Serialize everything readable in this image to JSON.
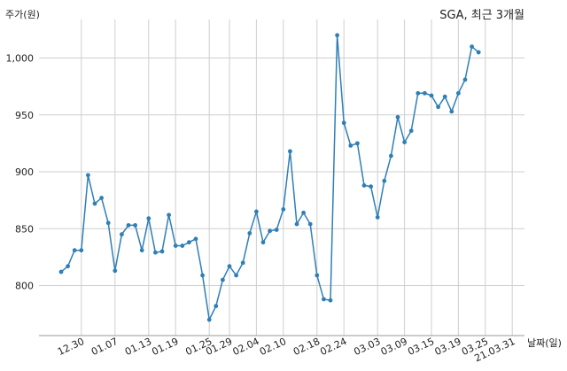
{
  "chart_data": {
    "type": "line",
    "title": "SGA, 최근 3개월",
    "xlabel": "날짜(일)",
    "ylabel": "주가(원)",
    "ylim": [
      750,
      1040
    ],
    "yticks": [
      800,
      850,
      900,
      950,
      1000
    ],
    "ytick_labels": [
      "800",
      "850",
      "900",
      "950",
      "1,000"
    ],
    "grid": true,
    "line_color": "#2f7fb7",
    "grid_color": "#cfcfcf",
    "xtick_labels": [
      "12.30",
      "01.07",
      "01.13",
      "01.19",
      "01.25",
      "01.29",
      "02.04",
      "02.10",
      "02.18",
      "02.24",
      "03.03",
      "03.09",
      "03.15",
      "03.19",
      "03.25",
      "21.03.31"
    ],
    "xtick_index": [
      3,
      8,
      13,
      17,
      22,
      25,
      29,
      33,
      38,
      42,
      47,
      51,
      55,
      59,
      63,
      67
    ],
    "series": [
      {
        "values": [
          812,
          817,
          831,
          831,
          897,
          872,
          877,
          855,
          813,
          845,
          853,
          853,
          831,
          859,
          829,
          830,
          862,
          835,
          835,
          838,
          841,
          809,
          770,
          782,
          805,
          817,
          809,
          820,
          846,
          865,
          838,
          848,
          849,
          867,
          918,
          854,
          864,
          854,
          809,
          788,
          787,
          1020,
          943,
          923,
          925,
          888,
          887,
          860,
          892,
          914,
          948,
          926,
          936,
          969,
          969,
          967,
          957,
          966,
          953,
          969,
          981,
          1010,
          1005
        ]
      }
    ]
  }
}
